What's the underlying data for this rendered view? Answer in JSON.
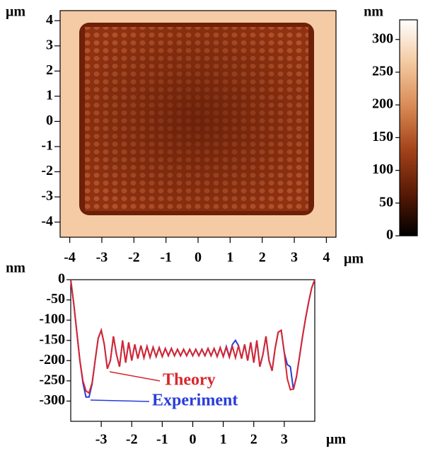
{
  "chart_data": [
    {
      "type": "heatmap",
      "x_label": "μm",
      "y_label": "μm",
      "xlim": [
        -4.3,
        4.3
      ],
      "ylim": [
        -4.6,
        4.4
      ],
      "xticks": [
        -4,
        -3,
        -2,
        -1,
        0,
        1,
        2,
        3,
        4
      ],
      "yticks": [
        -4,
        -3,
        -2,
        -1,
        0,
        1,
        2,
        3,
        4
      ]
    },
    {
      "type": "colorbar",
      "y_label": "nm",
      "ylim": [
        0,
        330
      ],
      "yticks": [
        0,
        50,
        100,
        150,
        200,
        250,
        300
      ],
      "colors": [
        "#000000",
        "#5a1a05",
        "#a4431a",
        "#d98a55",
        "#f3c9a0",
        "#ffffff"
      ]
    },
    {
      "type": "line",
      "x_label": "μm",
      "y_label": "nm",
      "xlim": [
        -4,
        4
      ],
      "ylim": [
        -350,
        0
      ],
      "xticks": [
        -3,
        -2,
        -1,
        0,
        1,
        2,
        3
      ],
      "yticks": [
        0,
        -50,
        -100,
        -150,
        -200,
        -250,
        -300
      ],
      "x": [
        -4.0,
        -3.9,
        -3.8,
        -3.7,
        -3.6,
        -3.5,
        -3.4,
        -3.3,
        -3.2,
        -3.1,
        -3.0,
        -2.9,
        -2.8,
        -2.7,
        -2.6,
        -2.5,
        -2.4,
        -2.3,
        -2.2,
        -2.1,
        -2.0,
        -1.9,
        -1.8,
        -1.7,
        -1.6,
        -1.5,
        -1.4,
        -1.3,
        -1.2,
        -1.1,
        -1.0,
        -0.9,
        -0.8,
        -0.7,
        -0.6,
        -0.5,
        -0.4,
        -0.3,
        -0.2,
        -0.1,
        0,
        0.1,
        0.2,
        0.3,
        0.4,
        0.5,
        0.6,
        0.7,
        0.8,
        0.9,
        1.0,
        1.1,
        1.2,
        1.3,
        1.4,
        1.5,
        1.6,
        1.7,
        1.8,
        1.9,
        2.0,
        2.1,
        2.2,
        2.3,
        2.4,
        2.5,
        2.6,
        2.7,
        2.8,
        2.9,
        3.0,
        3.1,
        3.2,
        3.3,
        3.4,
        3.5,
        3.6,
        3.7,
        3.8,
        3.9,
        4.0
      ],
      "series": [
        {
          "name": "Experiment",
          "color": "#2a3cd8",
          "values": [
            0,
            -60,
            -130,
            -200,
            -255,
            -290,
            -290,
            -258,
            -200,
            -145,
            -125,
            -160,
            -220,
            -200,
            -140,
            -185,
            -215,
            -150,
            -205,
            -155,
            -200,
            -160,
            -195,
            -163,
            -193,
            -165,
            -192,
            -167,
            -190,
            -168,
            -190,
            -170,
            -188,
            -170,
            -188,
            -172,
            -188,
            -172,
            -188,
            -172,
            -188,
            -172,
            -188,
            -172,
            -188,
            -170,
            -188,
            -170,
            -190,
            -168,
            -190,
            -165,
            -190,
            -160,
            -150,
            -163,
            -195,
            -160,
            -200,
            -155,
            -205,
            -150,
            -215,
            -185,
            -140,
            -200,
            -225,
            -170,
            -130,
            -125,
            -180,
            -210,
            -215,
            -272,
            -240,
            -190,
            -140,
            -95,
            -55,
            -20,
            0
          ]
        },
        {
          "name": "Theory",
          "color": "#d8262e",
          "values": [
            0,
            -60,
            -130,
            -200,
            -250,
            -275,
            -280,
            -255,
            -200,
            -145,
            -125,
            -160,
            -220,
            -200,
            -140,
            -185,
            -215,
            -150,
            -205,
            -155,
            -200,
            -160,
            -195,
            -163,
            -193,
            -165,
            -192,
            -167,
            -190,
            -168,
            -190,
            -170,
            -188,
            -170,
            -188,
            -172,
            -188,
            -172,
            -188,
            -172,
            -188,
            -172,
            -188,
            -172,
            -188,
            -170,
            -188,
            -170,
            -190,
            -168,
            -190,
            -167,
            -192,
            -165,
            -193,
            -163,
            -195,
            -160,
            -200,
            -155,
            -205,
            -150,
            -215,
            -185,
            -140,
            -200,
            -225,
            -170,
            -130,
            -125,
            -180,
            -245,
            -272,
            -270,
            -240,
            -190,
            -140,
            -95,
            -55,
            -20,
            0
          ]
        }
      ]
    }
  ]
}
